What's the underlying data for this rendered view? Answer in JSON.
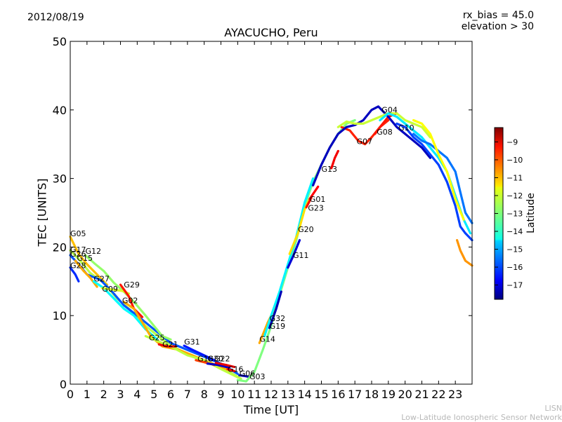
{
  "header": {
    "date": "2012/08/19",
    "rx_bias": "rx_bias = 45.0",
    "elevation": "elevation > 30"
  },
  "footer": {
    "network_abbr": "LISN",
    "network_name": "Low-Latitude Ionospheric Sensor Network"
  },
  "chart_data": {
    "type": "scatter",
    "title": "AYACUCHO, Peru",
    "xlabel": "Time [UT]",
    "ylabel": "TEC [UNITS]",
    "xlim": [
      0,
      24
    ],
    "ylim": [
      0,
      50
    ],
    "xticks": [
      "0",
      "1",
      "2",
      "3",
      "4",
      "5",
      "6",
      "7",
      "8",
      "9",
      "10",
      "11",
      "12",
      "13",
      "14",
      "15",
      "16",
      "17",
      "18",
      "19",
      "20",
      "21",
      "22",
      "23"
    ],
    "yticks": [
      "0",
      "10",
      "20",
      "30",
      "40",
      "50"
    ],
    "grid": false,
    "colorbar": {
      "label": "Latitude",
      "range": [
        -17.8,
        -8.2
      ],
      "ticks": [
        "-9",
        "-10",
        "-11",
        "-12",
        "-13",
        "-14",
        "-15",
        "-16",
        "-17"
      ],
      "colormap": "jet"
    },
    "series": [
      {
        "name": "G05",
        "lat": -11.2,
        "label_at": [
          0,
          21.6
        ],
        "points": [
          [
            0,
            21.5
          ],
          [
            0.5,
            19
          ],
          [
            1,
            17.5
          ],
          [
            1.6,
            16
          ],
          [
            2.2,
            14.5
          ]
        ]
      },
      {
        "name": "G17",
        "lat": -12.5,
        "label_at": [
          0,
          19.2
        ],
        "points": [
          [
            0,
            19.5
          ],
          [
            0.6,
            18
          ],
          [
            1.2,
            16.2
          ],
          [
            2,
            14.8
          ],
          [
            2.8,
            12.5
          ],
          [
            3.5,
            11
          ],
          [
            4.5,
            8.5
          ],
          [
            5.5,
            6.5
          ],
          [
            6.5,
            5
          ],
          [
            7.5,
            3.8
          ],
          [
            8.5,
            3
          ],
          [
            9.5,
            1.8
          ],
          [
            10.2,
            0.8
          ]
        ]
      },
      {
        "name": "G26",
        "lat": -15.8,
        "label_at": [
          0,
          18.6
        ],
        "points": [
          [
            0,
            18.8
          ],
          [
            0.5,
            17.5
          ],
          [
            1,
            16
          ],
          [
            1.8,
            15.2
          ],
          [
            2.5,
            13.5
          ],
          [
            3.2,
            11.5
          ],
          [
            4,
            10
          ],
          [
            5,
            8
          ],
          [
            6,
            6
          ],
          [
            7,
            5
          ],
          [
            8,
            4
          ],
          [
            9,
            3
          ],
          [
            10,
            1.5
          ]
        ]
      },
      {
        "name": "G12",
        "lat": -12.8,
        "label_at": [
          0.9,
          19.0
        ],
        "points": [
          [
            0.9,
            18.8
          ],
          [
            1.5,
            17.5
          ],
          [
            2,
            16.5
          ],
          [
            2.6,
            14.8
          ],
          [
            3.2,
            13.5
          ],
          [
            3.8,
            12
          ],
          [
            4.5,
            10
          ],
          [
            5,
            8.5
          ],
          [
            5.5,
            7
          ],
          [
            6,
            6.5
          ]
        ]
      },
      {
        "name": "G15",
        "lat": -11.0,
        "label_at": [
          0.4,
          18.0
        ],
        "points": [
          [
            0.3,
            18
          ],
          [
            0.8,
            16.5
          ],
          [
            1.2,
            15.5
          ],
          [
            1.6,
            14.2
          ]
        ]
      },
      {
        "name": "G28",
        "lat": -16.2,
        "label_at": [
          0,
          16.9
        ],
        "points": [
          [
            0,
            17
          ],
          [
            0.3,
            16
          ],
          [
            0.5,
            15
          ]
        ]
      },
      {
        "name": "G27",
        "lat": -14.2,
        "label_at": [
          1.4,
          15.0
        ],
        "points": [
          [
            1.4,
            15
          ],
          [
            2,
            14
          ],
          [
            2.6,
            12.5
          ],
          [
            3.2,
            11
          ],
          [
            3.8,
            10
          ],
          [
            4.5,
            8
          ],
          [
            5.2,
            6.5
          ]
        ]
      },
      {
        "name": "G09",
        "lat": -12.2,
        "label_at": [
          1.9,
          13.5
        ],
        "points": [
          [
            1.9,
            14
          ],
          [
            2.5,
            13.8
          ],
          [
            3.1,
            13.6
          ],
          [
            3.5,
            13.2
          ]
        ]
      },
      {
        "name": "G29",
        "lat": -9.6,
        "label_at": [
          3.2,
          14.1
        ],
        "points": [
          [
            3.0,
            14.5
          ],
          [
            3.3,
            13.5
          ],
          [
            3.5,
            12.8
          ],
          [
            3.8,
            11
          ],
          [
            4.3,
            9.8
          ]
        ]
      },
      {
        "name": "G02",
        "lat": -11.0,
        "label_at": [
          3.1,
          11.8
        ],
        "points": [
          [
            3.2,
            12
          ],
          [
            3.8,
            11
          ],
          [
            4.3,
            9
          ],
          [
            4.8,
            7
          ],
          [
            5.5,
            5.5
          ],
          [
            6.5,
            5
          ],
          [
            7.5,
            4
          ],
          [
            8.5,
            3
          ],
          [
            9.5,
            2
          ]
        ]
      },
      {
        "name": "G25",
        "lat": -12.4,
        "label_at": [
          4.7,
          6.4
        ],
        "points": [
          [
            4.5,
            7
          ],
          [
            5,
            6.5
          ],
          [
            5.5,
            6
          ],
          [
            6,
            5.5
          ],
          [
            7,
            4.2
          ],
          [
            8,
            3.5
          ],
          [
            9,
            2.2
          ],
          [
            10,
            1
          ]
        ]
      },
      {
        "name": "G21",
        "lat": -9.3,
        "label_at": [
          5.5,
          5.4
        ],
        "points": [
          [
            5.3,
            5.8
          ],
          [
            5.8,
            5.5
          ],
          [
            6.3,
            5.5
          ]
        ]
      },
      {
        "name": "G31",
        "lat": -16.4,
        "label_at": [
          6.8,
          5.8
        ],
        "points": [
          [
            6.8,
            5.6
          ],
          [
            7.3,
            5
          ],
          [
            8,
            4.2
          ],
          [
            8.6,
            3.5
          ]
        ]
      },
      {
        "name": "G18",
        "lat": -10.0,
        "label_at": [
          7.6,
          3.3
        ],
        "points": [
          [
            7.5,
            3.5
          ],
          [
            8,
            3.2
          ],
          [
            8.6,
            2.8
          ]
        ]
      },
      {
        "name": "G30",
        "lat": -17.1,
        "label_at": [
          8.2,
          3.3
        ],
        "points": [
          [
            8.2,
            3
          ],
          [
            8.8,
            2.8
          ],
          [
            9.5,
            2.4
          ]
        ]
      },
      {
        "name": "G22",
        "lat": -9.2,
        "label_at": [
          8.6,
          3.3
        ],
        "points": [
          [
            8.7,
            3.1
          ],
          [
            9.3,
            2.8
          ],
          [
            9.8,
            2.5
          ]
        ]
      },
      {
        "name": "G16",
        "lat": -9.4,
        "label_at": [
          9.4,
          1.8
        ],
        "points": [
          [
            9.4,
            2.2
          ],
          [
            9.8,
            1.9
          ]
        ]
      },
      {
        "name": "G06",
        "lat": -17.3,
        "label_at": [
          10.1,
          1.2
        ],
        "points": [
          [
            10.1,
            1.3
          ],
          [
            10.4,
            1.2
          ],
          [
            10.6,
            1.1
          ]
        ]
      },
      {
        "name": "G03",
        "lat": -13.0,
        "label_at": [
          10.7,
          0.7
        ],
        "points": [
          [
            10.0,
            0.6
          ],
          [
            10.5,
            0.4
          ],
          [
            11,
            1.8
          ],
          [
            11.5,
            5
          ],
          [
            12,
            8.5
          ],
          [
            12.5,
            13
          ],
          [
            13,
            17
          ],
          [
            13.5,
            21
          ],
          [
            14,
            26
          ],
          [
            14.5,
            29.5
          ],
          [
            15,
            32
          ],
          [
            15.5,
            34.5
          ],
          [
            16,
            36.5
          ],
          [
            16.5,
            38
          ],
          [
            17,
            38.5
          ]
        ]
      },
      {
        "name": "G14",
        "lat": -11.0,
        "label_at": [
          11.3,
          6.2
        ],
        "points": [
          [
            11.3,
            6
          ],
          [
            11.8,
            9
          ],
          [
            12.3,
            11.5
          ]
        ]
      },
      {
        "name": "G32",
        "lat": -14.3,
        "label_at": [
          11.9,
          9.2
        ],
        "points": [
          [
            11.6,
            7
          ],
          [
            12,
            10
          ],
          [
            12.5,
            13.5
          ],
          [
            13,
            17.5
          ],
          [
            13.5,
            21.5
          ],
          [
            14,
            26.5
          ],
          [
            14.5,
            30
          ]
        ]
      },
      {
        "name": "G19",
        "lat": -17.3,
        "label_at": [
          11.9,
          8.1
        ],
        "points": [
          [
            11.9,
            8.2
          ],
          [
            12.3,
            11
          ],
          [
            12.6,
            13.5
          ]
        ]
      },
      {
        "name": "G11",
        "lat": -17.0,
        "label_at": [
          13.3,
          18.4
        ],
        "points": [
          [
            13.0,
            17
          ],
          [
            13.3,
            18.6
          ],
          [
            13.7,
            21
          ]
        ]
      },
      {
        "name": "G20",
        "lat": -11.5,
        "label_at": [
          13.6,
          22.2
        ],
        "points": [
          [
            13.1,
            19
          ],
          [
            13.6,
            22
          ],
          [
            14,
            25.5
          ],
          [
            14.3,
            27
          ]
        ]
      },
      {
        "name": "G23",
        "lat": -9.5,
        "label_at": [
          14.2,
          25.3
        ],
        "points": [
          [
            14.1,
            25.8
          ],
          [
            14.4,
            27.2
          ]
        ]
      },
      {
        "name": "G01",
        "lat": -9.4,
        "label_at": [
          14.3,
          26.6
        ],
        "points": [
          [
            14.3,
            27
          ],
          [
            14.8,
            28.8
          ]
        ]
      },
      {
        "name": "G13",
        "lat": -9.3,
        "label_at": [
          15.0,
          31.0
        ],
        "points": [
          [
            15.6,
            31.5
          ],
          [
            15.8,
            33
          ],
          [
            16,
            34
          ]
        ]
      },
      {
        "name": "G07",
        "lat": -9.7,
        "label_at": [
          17.1,
          35.0
        ],
        "points": [
          [
            16.2,
            37.5
          ],
          [
            16.7,
            37
          ],
          [
            17.2,
            35.5
          ],
          [
            17.6,
            35
          ],
          [
            18,
            36
          ],
          [
            18.5,
            37.5
          ],
          [
            19,
            38.5
          ]
        ]
      },
      {
        "name": "G08",
        "lat": -9.6,
        "label_at": [
          18.3,
          36.4
        ],
        "points": [
          [
            18.2,
            36.5
          ],
          [
            18.5,
            37.5
          ],
          [
            19,
            39
          ],
          [
            19.5,
            39.5
          ]
        ]
      },
      {
        "name": "G04",
        "lat": -17.2,
        "label_at": [
          18.6,
          39.6
        ],
        "points": [
          [
            14.5,
            29
          ],
          [
            15,
            32
          ],
          [
            15.5,
            34.5
          ],
          [
            16,
            36.5
          ],
          [
            16.5,
            37.5
          ],
          [
            17,
            37.8
          ],
          [
            17.5,
            38.5
          ],
          [
            18,
            40
          ],
          [
            18.4,
            40.5
          ],
          [
            19,
            39
          ],
          [
            19.5,
            37.5
          ],
          [
            20,
            36.5
          ],
          [
            20.5,
            35.5
          ],
          [
            21,
            34.5
          ],
          [
            21.5,
            33
          ]
        ]
      },
      {
        "name": "G10",
        "lat": -16.0,
        "label_at": [
          19.6,
          37.0
        ],
        "points": [
          [
            19.5,
            38
          ],
          [
            20,
            37.5
          ],
          [
            20.5,
            36
          ],
          [
            21,
            35
          ],
          [
            21.5,
            33.5
          ],
          [
            22,
            32
          ],
          [
            22.5,
            29.5
          ],
          [
            23,
            26
          ],
          [
            23.3,
            23
          ],
          [
            23.6,
            22
          ],
          [
            24,
            21
          ]
        ]
      },
      {
        "name": "track-a",
        "lat": -12.3,
        "label_at": null,
        "points": [
          [
            16.0,
            37.5
          ],
          [
            16.5,
            38.3
          ],
          [
            17,
            38
          ],
          [
            17.5,
            38
          ],
          [
            18,
            38.5
          ],
          [
            18.5,
            39
          ],
          [
            19,
            39.5
          ],
          [
            19.5,
            39.5
          ],
          [
            20,
            38.5
          ],
          [
            20.5,
            38
          ],
          [
            21,
            37.5
          ],
          [
            21.5,
            36
          ]
        ]
      },
      {
        "name": "track-b",
        "lat": -14.4,
        "label_at": null,
        "points": [
          [
            18.5,
            38.5
          ],
          [
            19,
            39.5
          ],
          [
            19.5,
            39
          ],
          [
            20,
            38
          ],
          [
            20.5,
            37
          ],
          [
            21,
            36
          ],
          [
            21.5,
            34.5
          ],
          [
            22,
            33
          ],
          [
            22.5,
            31
          ],
          [
            23,
            27.5
          ],
          [
            23.5,
            24
          ],
          [
            23.9,
            22
          ]
        ]
      },
      {
        "name": "track-c",
        "lat": -15.5,
        "label_at": null,
        "points": [
          [
            20.5,
            36.5
          ],
          [
            21,
            35.5
          ],
          [
            21.5,
            35
          ],
          [
            22,
            34
          ],
          [
            22.5,
            33
          ],
          [
            23,
            31
          ],
          [
            23.3,
            28
          ],
          [
            23.6,
            25
          ],
          [
            24,
            23.5
          ]
        ]
      },
      {
        "name": "track-d",
        "lat": -10.8,
        "label_at": null,
        "points": [
          [
            23.1,
            21
          ],
          [
            23.3,
            19.5
          ],
          [
            23.6,
            18
          ],
          [
            24,
            17.3
          ]
        ]
      },
      {
        "name": "track-e",
        "lat": -11.8,
        "label_at": null,
        "points": [
          [
            20.5,
            38.5
          ],
          [
            21,
            38
          ],
          [
            21.5,
            36.5
          ],
          [
            22,
            33.5
          ],
          [
            22.5,
            31
          ],
          [
            23,
            27
          ],
          [
            23.5,
            24
          ]
        ]
      }
    ]
  }
}
